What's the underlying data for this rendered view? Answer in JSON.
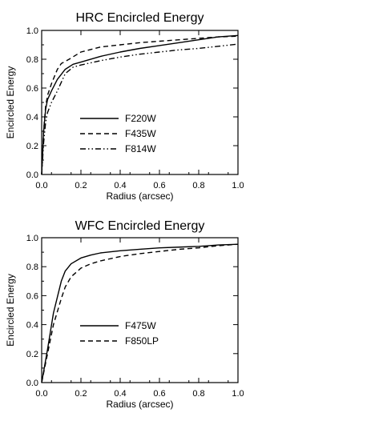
{
  "chart_data": [
    {
      "type": "line",
      "title": "HRC Encircled Energy",
      "xlabel": "Radius (arcsec)",
      "ylabel": "Encircled Energy",
      "xlim": [
        0.0,
        1.0
      ],
      "ylim": [
        0.0,
        1.0
      ],
      "xticks": [
        "0.0",
        "0.2",
        "0.4",
        "0.6",
        "0.8",
        "1.0"
      ],
      "yticks": [
        "0.0",
        "0.2",
        "0.4",
        "0.6",
        "0.8",
        "1.0"
      ],
      "grid": false,
      "legend_position": "center",
      "series": [
        {
          "name": "F220W",
          "style": "solid",
          "x": [
            0,
            0.01,
            0.02,
            0.03,
            0.05,
            0.08,
            0.12,
            0.16,
            0.2,
            0.3,
            0.4,
            0.5,
            0.6,
            0.7,
            0.8,
            0.9,
            1.0
          ],
          "y": [
            0,
            0.3,
            0.45,
            0.52,
            0.58,
            0.66,
            0.73,
            0.765,
            0.78,
            0.82,
            0.85,
            0.875,
            0.895,
            0.915,
            0.935,
            0.955,
            0.965
          ]
        },
        {
          "name": "F435W",
          "style": "dashed",
          "x": [
            0,
            0.01,
            0.02,
            0.03,
            0.05,
            0.08,
            0.1,
            0.14,
            0.2,
            0.3,
            0.4,
            0.5,
            0.6,
            0.7,
            0.8,
            0.9,
            1.0
          ],
          "y": [
            0,
            0.3,
            0.47,
            0.55,
            0.63,
            0.73,
            0.77,
            0.8,
            0.85,
            0.885,
            0.9,
            0.915,
            0.925,
            0.935,
            0.945,
            0.955,
            0.96
          ]
        },
        {
          "name": "F814W",
          "style": "dash-dot-dot",
          "x": [
            0,
            0.01,
            0.02,
            0.03,
            0.05,
            0.08,
            0.12,
            0.16,
            0.2,
            0.3,
            0.4,
            0.5,
            0.6,
            0.7,
            0.8,
            0.9,
            1.0
          ],
          "y": [
            0,
            0.22,
            0.36,
            0.43,
            0.5,
            0.58,
            0.7,
            0.745,
            0.76,
            0.79,
            0.815,
            0.835,
            0.85,
            0.865,
            0.875,
            0.89,
            0.905
          ]
        }
      ]
    },
    {
      "type": "line",
      "title": "WFC Encircled Energy",
      "xlabel": "Radius (arcsec)",
      "ylabel": "Encircled Energy",
      "xlim": [
        0.0,
        1.0
      ],
      "ylim": [
        0.0,
        1.0
      ],
      "xticks": [
        "0.0",
        "0.2",
        "0.4",
        "0.6",
        "0.8",
        "1.0"
      ],
      "yticks": [
        "0.0",
        "0.2",
        "0.4",
        "0.6",
        "0.8",
        "1.0"
      ],
      "grid": false,
      "legend_position": "center",
      "series": [
        {
          "name": "F475W",
          "style": "solid",
          "x": [
            0,
            0.03,
            0.06,
            0.1,
            0.12,
            0.15,
            0.2,
            0.25,
            0.3,
            0.4,
            0.5,
            0.6,
            0.7,
            0.8,
            0.9,
            1.0
          ],
          "y": [
            0,
            0.23,
            0.48,
            0.7,
            0.77,
            0.82,
            0.86,
            0.88,
            0.895,
            0.91,
            0.92,
            0.93,
            0.935,
            0.94,
            0.95,
            0.955
          ]
        },
        {
          "name": "F850LP",
          "style": "dashed",
          "x": [
            0,
            0.03,
            0.06,
            0.1,
            0.12,
            0.15,
            0.2,
            0.25,
            0.3,
            0.4,
            0.5,
            0.6,
            0.7,
            0.8,
            0.9,
            1.0
          ],
          "y": [
            0,
            0.2,
            0.4,
            0.58,
            0.66,
            0.73,
            0.79,
            0.82,
            0.84,
            0.87,
            0.89,
            0.905,
            0.92,
            0.93,
            0.945,
            0.955
          ]
        }
      ]
    }
  ]
}
